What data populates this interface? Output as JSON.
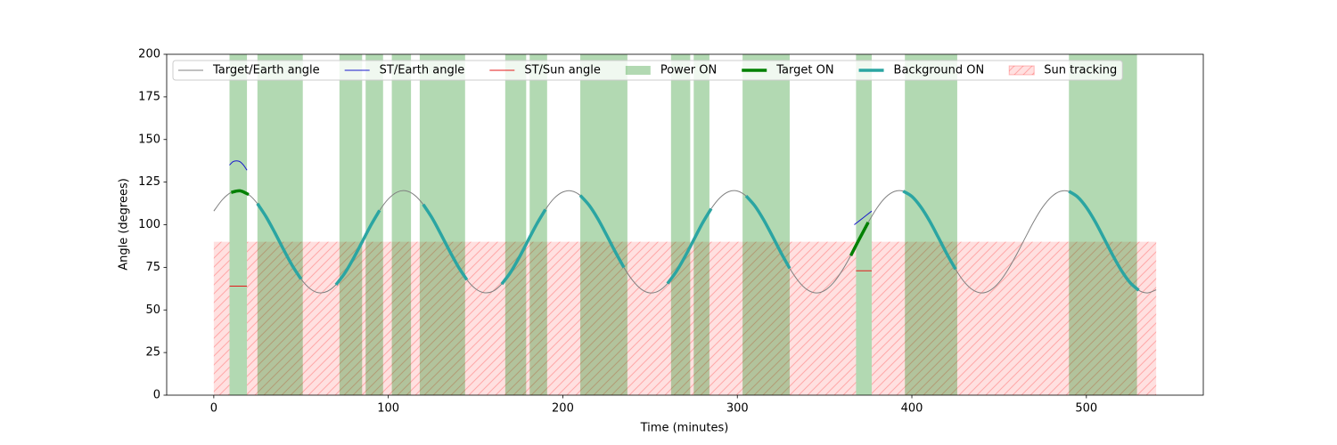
{
  "chart_data": {
    "type": "line",
    "xlabel": "Time (minutes)",
    "ylabel": "Angle (degrees)",
    "xlim": [
      -27,
      567
    ],
    "ylim": [
      0,
      200
    ],
    "xticks": [
      0,
      100,
      200,
      300,
      400,
      500
    ],
    "yticks": [
      0,
      25,
      50,
      75,
      100,
      125,
      150,
      175,
      200
    ],
    "grid": false,
    "legend": "upper left",
    "x": [
      0,
      5,
      10,
      15,
      20,
      25,
      30,
      35,
      40,
      45,
      50,
      55,
      60,
      65,
      70,
      75,
      80,
      85,
      90,
      95,
      100,
      105,
      110,
      115,
      120,
      125,
      130,
      135,
      140,
      145,
      150,
      155,
      160,
      165,
      170,
      175,
      180,
      185,
      190,
      195,
      200,
      205,
      210,
      215,
      220,
      225,
      230,
      235,
      240,
      245,
      250,
      255,
      260,
      265,
      270,
      275,
      280,
      285,
      290,
      295,
      300,
      305,
      310,
      315,
      320,
      325,
      330,
      335,
      340,
      345,
      350,
      355,
      360,
      365,
      370,
      375,
      380,
      385,
      390,
      395,
      400,
      405,
      410,
      415,
      420,
      425,
      430,
      435,
      440,
      445,
      450,
      455,
      460,
      465,
      470,
      475,
      480,
      485,
      490,
      495,
      500,
      505,
      510,
      515,
      520,
      525,
      530,
      535,
      540
    ],
    "series": [
      {
        "name": "Target/Earth angle",
        "color": "#808080",
        "width": 1,
        "values": [
          108.0,
          114.8,
          119.0,
          119.9,
          117.7,
          112.4,
          104.6,
          95.3,
          85.4,
          76.0,
          68.1,
          62.6,
          60.1,
          60.9,
          64.8,
          71.5,
          80.2,
          89.9,
          99.7,
          108.4,
          115.1,
          119.1,
          119.9,
          117.4,
          111.9,
          104.1,
          94.7,
          84.8,
          75.5,
          67.7,
          62.4,
          60.1,
          61.0,
          65.2,
          72.0,
          80.8,
          90.6,
          100.3,
          108.9,
          115.5,
          119.2,
          119.8,
          117.2,
          111.5,
          103.6,
          94.1,
          84.2,
          74.9,
          67.3,
          62.1,
          60.0,
          61.2,
          65.5,
          72.5,
          81.3,
          91.1,
          100.9,
          109.4,
          115.8,
          119.4,
          119.8,
          116.9,
          111.1,
          103.0,
          93.5,
          83.6,
          74.4,
          66.9,
          61.9,
          60.0,
          61.4,
          65.9,
          73.0,
          81.9,
          91.8,
          101.4,
          109.8,
          116.1,
          119.5,
          119.7,
          116.6,
          110.6,
          102.5,
          92.9,
          83.0,
          73.9,
          66.5,
          61.7,
          60.0,
          61.6,
          66.2,
          73.5,
          82.5,
          92.4,
          102.1,
          110.4,
          116.4,
          119.6,
          119.6,
          116.3,
          110.2,
          101.9,
          92.2,
          82.3,
          73.3,
          66.1,
          61.5,
          60.0,
          61.8
        ]
      },
      {
        "name": "ST/Earth angle",
        "color": "#1a1acc",
        "width": 1,
        "segments": [
          {
            "x": [
              9,
              11,
              13,
              15,
              17,
              19
            ],
            "values": [
              135,
              137,
              137.5,
              137,
              135,
              132
            ]
          },
          {
            "x": [
              367,
              372,
              377
            ],
            "values": [
              100,
              104,
              108
            ]
          }
        ]
      },
      {
        "name": "ST/Sun angle",
        "color": "#e31a1a",
        "width": 1,
        "segments": [
          {
            "x": [
              9,
              19
            ],
            "values": [
              64,
              64
            ]
          },
          {
            "x": [
              368,
              377
            ],
            "values": [
              73,
              73
            ]
          }
        ]
      },
      {
        "name": "Power ON",
        "kind": "span",
        "color": "#008000",
        "opacity": 0.3,
        "spans": [
          [
            9,
            19
          ],
          [
            25,
            51
          ],
          [
            72,
            85
          ],
          [
            87,
            97
          ],
          [
            102,
            113
          ],
          [
            118,
            144
          ],
          [
            167,
            179
          ],
          [
            181,
            191
          ],
          [
            210,
            237
          ],
          [
            262,
            273
          ],
          [
            275,
            284
          ],
          [
            303,
            330
          ],
          [
            368,
            377
          ],
          [
            396,
            426
          ],
          [
            490,
            529
          ]
        ]
      },
      {
        "name": "Target ON",
        "color": "#008000",
        "width": 3.5,
        "segments": [
          {
            "x": [
              10,
              15,
              20
            ],
            "values": [
              119.0,
              119.9,
              117.7
            ]
          },
          {
            "x": [
              365,
              370,
              375
            ],
            "values": [
              81.9,
              91.8,
              101.4
            ]
          }
        ]
      },
      {
        "name": "Background ON",
        "color": "#2ba5a2",
        "width": 3.5,
        "segments": [
          {
            "x": [
              25,
              30,
              35,
              40,
              45,
              50
            ],
            "values": [
              112.4,
              104.6,
              95.3,
              85.4,
              76.0,
              68.1
            ]
          },
          {
            "x": [
              70,
              75,
              80,
              85,
              90,
              95
            ],
            "values": [
              64.8,
              71.5,
              80.2,
              89.9,
              99.7,
              108.4
            ]
          },
          {
            "x": [
              120,
              125,
              130,
              135,
              140,
              145
            ],
            "values": [
              111.9,
              104.1,
              94.7,
              84.8,
              75.5,
              67.7
            ]
          },
          {
            "x": [
              165,
              170,
              175,
              180,
              185,
              190
            ],
            "values": [
              65.2,
              72.0,
              80.8,
              90.6,
              100.3,
              108.9
            ]
          },
          {
            "x": [
              210,
              215,
              220,
              225,
              230,
              235
            ],
            "values": [
              117.2,
              111.5,
              103.6,
              94.1,
              84.2,
              74.9
            ]
          },
          {
            "x": [
              260,
              265,
              270,
              275,
              280,
              285
            ],
            "values": [
              65.5,
              72.5,
              81.3,
              91.1,
              100.9,
              109.4
            ]
          },
          {
            "x": [
              305,
              310,
              315,
              320,
              325,
              330
            ],
            "values": [
              116.9,
              111.1,
              103.0,
              93.5,
              83.6,
              74.4
            ]
          },
          {
            "x": [
              395,
              400,
              405,
              410,
              415,
              420,
              425
            ],
            "values": [
              119.7,
              116.6,
              110.6,
              102.5,
              92.9,
              83.0,
              73.9
            ]
          },
          {
            "x": [
              490,
              495,
              500,
              505,
              510,
              515,
              520,
              525,
              530
            ],
            "values": [
              119.6,
              116.3,
              110.2,
              101.9,
              92.2,
              82.3,
              73.3,
              66.1,
              61.5
            ]
          }
        ]
      },
      {
        "name": "Sun tracking",
        "kind": "hatch",
        "color": "#ff0000",
        "height": 90,
        "spans": [
          [
            0,
            9
          ],
          [
            19,
            368
          ],
          [
            377,
            540
          ]
        ]
      }
    ]
  }
}
